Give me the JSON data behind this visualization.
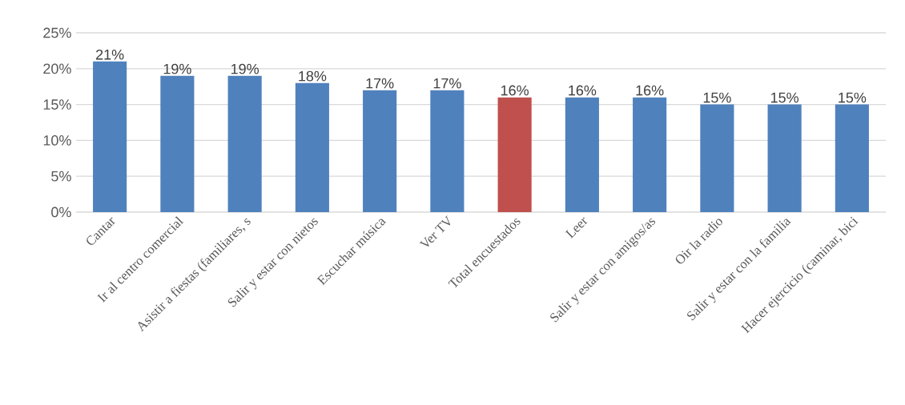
{
  "chart_data": {
    "type": "bar",
    "categories": [
      "Cantar",
      "Ir al centro comercial",
      "Asistir a fiestas (familiares, s",
      "Salir y estar con nietos",
      "Escuchar música",
      "Ver TV",
      "Total encuestados",
      "Leer",
      "Salir y estar con amigos/as",
      "Oir la radio",
      "Salir y estar con la familia",
      "Hacer ejercicio (caminar, bici"
    ],
    "values": [
      21,
      19,
      19,
      18,
      17,
      17,
      16,
      16,
      16,
      15,
      15,
      15
    ],
    "colors": [
      "#4f81bd",
      "#4f81bd",
      "#4f81bd",
      "#4f81bd",
      "#4f81bd",
      "#4f81bd",
      "#c0504d",
      "#4f81bd",
      "#4f81bd",
      "#4f81bd",
      "#4f81bd",
      "#4f81bd"
    ],
    "value_labels": [
      "21%",
      "19%",
      "19%",
      "18%",
      "17%",
      "17%",
      "16%",
      "16%",
      "16%",
      "15%",
      "15%",
      "15%"
    ],
    "ylim": [
      0,
      25
    ],
    "yticks": [
      {
        "value": 0,
        "label": "0%"
      },
      {
        "value": 5,
        "label": "5%"
      },
      {
        "value": 10,
        "label": "10%"
      },
      {
        "value": 15,
        "label": "15%"
      },
      {
        "value": 20,
        "label": "20%"
      },
      {
        "value": 25,
        "label": "25%"
      }
    ],
    "grid": "y"
  }
}
